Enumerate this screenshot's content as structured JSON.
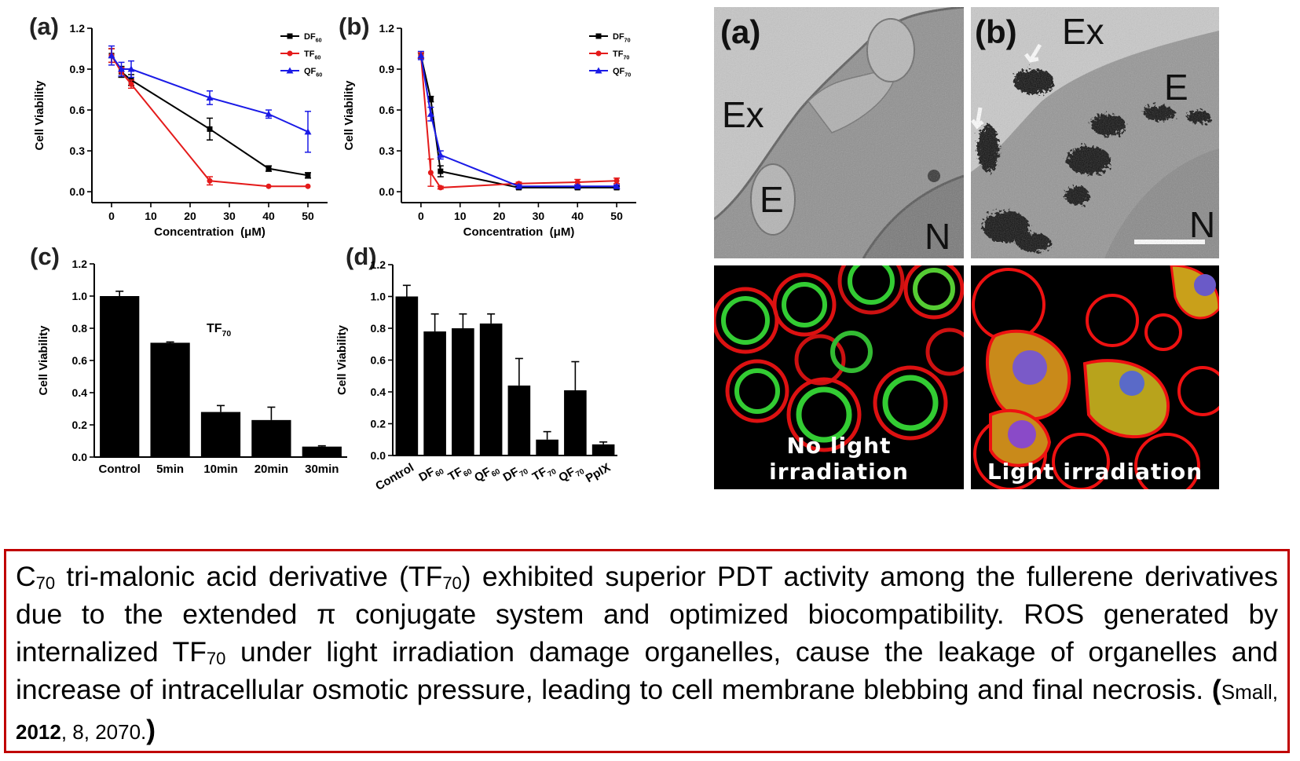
{
  "colors": {
    "black": "#000000",
    "red": "#e41a1a",
    "blue": "#1a1ae6",
    "caption_border": "#c00000"
  },
  "chart_data": [
    {
      "id": "a",
      "panel_label": "(a)",
      "type": "line",
      "xlabel": "Concentration  (μM)",
      "ylabel": "Cell Viability",
      "xlim": [
        -5,
        55
      ],
      "ylim": [
        -0.08,
        1.2
      ],
      "xticks": [
        0,
        10,
        20,
        30,
        40,
        50
      ],
      "yticks": [
        0.0,
        0.3,
        0.6,
        0.9,
        1.2
      ],
      "ytick_labels": [
        "0.0",
        "0.3",
        "0.6",
        "0.9",
        "1.2"
      ],
      "legend_position": "top-right",
      "x": [
        0,
        2.5,
        5,
        25,
        40,
        50
      ],
      "series": [
        {
          "name": "DF",
          "sub": "60",
          "color": "#000000",
          "marker": "square",
          "values": [
            1.0,
            0.88,
            0.82,
            0.46,
            0.17,
            0.12
          ],
          "errors": [
            0.05,
            0.04,
            0.04,
            0.08,
            0.02,
            0.02
          ]
        },
        {
          "name": "TF",
          "sub": "60",
          "color": "#e41a1a",
          "marker": "circle",
          "values": [
            1.0,
            0.88,
            0.79,
            0.08,
            0.04,
            0.04
          ],
          "errors": [
            0.05,
            0.03,
            0.03,
            0.03,
            0.0,
            0.0
          ]
        },
        {
          "name": "QF",
          "sub": "60",
          "color": "#1a1ae6",
          "marker": "triangle",
          "values": [
            1.0,
            0.9,
            0.9,
            0.69,
            0.57,
            0.44
          ],
          "errors": [
            0.07,
            0.05,
            0.06,
            0.05,
            0.03,
            0.15
          ]
        }
      ]
    },
    {
      "id": "b",
      "panel_label": "(b)",
      "type": "line",
      "xlabel": "Concentration  (μM)",
      "ylabel": "Cell Viability",
      "xlim": [
        -5,
        55
      ],
      "ylim": [
        -0.08,
        1.2
      ],
      "xticks": [
        0,
        10,
        20,
        30,
        40,
        50
      ],
      "yticks": [
        0.0,
        0.3,
        0.6,
        0.9,
        1.2
      ],
      "ytick_labels": [
        "0.0",
        "0.3",
        "0.6",
        "0.9",
        "1.2"
      ],
      "legend_position": "top-right",
      "x": [
        0,
        2.5,
        5,
        25,
        40,
        50
      ],
      "series": [
        {
          "name": "DF",
          "sub": "70",
          "color": "#000000",
          "marker": "square",
          "values": [
            1.0,
            0.68,
            0.15,
            0.03,
            0.03,
            0.03
          ],
          "errors": [
            0.02,
            0.02,
            0.04,
            0.01,
            0.01,
            0.01
          ]
        },
        {
          "name": "TF",
          "sub": "70",
          "color": "#e41a1a",
          "marker": "circle",
          "values": [
            1.0,
            0.14,
            0.03,
            0.06,
            0.07,
            0.08
          ],
          "errors": [
            0.02,
            0.1,
            0.01,
            0.01,
            0.02,
            0.02
          ]
        },
        {
          "name": "QF",
          "sub": "70",
          "color": "#1a1ae6",
          "marker": "triangle",
          "values": [
            1.0,
            0.57,
            0.27,
            0.04,
            0.04,
            0.04
          ],
          "errors": [
            0.03,
            0.05,
            0.03,
            0.01,
            0.01,
            0.01
          ]
        }
      ]
    },
    {
      "id": "c",
      "panel_label": "(c)",
      "type": "bar",
      "ylabel": "Cell Viability",
      "ylim": [
        0,
        1.2
      ],
      "yticks": [
        0.0,
        0.2,
        0.4,
        0.6,
        0.8,
        1.0,
        1.2
      ],
      "ytick_labels": [
        "0.0",
        "0.2",
        "0.4",
        "0.6",
        "0.8",
        "1.0",
        "1.2"
      ],
      "annotation": {
        "text": "TF",
        "sub": "70"
      },
      "categories": [
        "Control",
        "5min",
        "10min",
        "20min",
        "30min"
      ],
      "values": [
        1.0,
        0.71,
        0.28,
        0.23,
        0.065
      ],
      "errors": [
        0.03,
        0.005,
        0.04,
        0.08,
        0.005
      ]
    },
    {
      "id": "d",
      "panel_label": "(d)",
      "type": "bar",
      "ylabel": "Cell Viability",
      "ylim": [
        0,
        1.2
      ],
      "yticks": [
        0.0,
        0.2,
        0.4,
        0.6,
        0.8,
        1.0,
        1.2
      ],
      "ytick_labels": [
        "0.0",
        "0.2",
        "0.4",
        "0.6",
        "0.8",
        "1.0",
        "1.2"
      ],
      "categories": [
        {
          "name": "Control",
          "sub": ""
        },
        {
          "name": "DF",
          "sub": "60"
        },
        {
          "name": "TF",
          "sub": "60"
        },
        {
          "name": "QF",
          "sub": "60"
        },
        {
          "name": "DF",
          "sub": "70"
        },
        {
          "name": "TF",
          "sub": "70"
        },
        {
          "name": "QF",
          "sub": "70"
        },
        {
          "name": "PpIX",
          "sub": ""
        }
      ],
      "values": [
        1.0,
        0.78,
        0.8,
        0.83,
        0.44,
        0.1,
        0.41,
        0.07
      ],
      "errors": [
        0.07,
        0.11,
        0.09,
        0.06,
        0.17,
        0.05,
        0.18,
        0.015
      ]
    }
  ],
  "micrographs": {
    "tem_a": {
      "panel_label": "(a)",
      "labels": [
        "Ex",
        "E",
        "N"
      ]
    },
    "tem_b": {
      "panel_label": "(b)",
      "labels": [
        "Ex",
        "E",
        "N"
      ]
    },
    "fluor_left": {
      "caption": "No light irradiation"
    },
    "fluor_right": {
      "caption": "Light irradiation"
    }
  },
  "caption": {
    "p1": "C",
    "s1": "70",
    "p2": " tri-malonic acid derivative (TF",
    "s2": "70",
    "p3": ") exhibited superior PDT activity among the fullerene derivatives due to the extended π conjugate system and optimized biocompatibility. ROS generated by internalized TF",
    "s3": "70",
    "p4": " under light irradiation damage organelles, cause the leakage of organelles and increase of intracellular osmotic pressure, leading to cell membrane blebbing and final necrosis. ",
    "cite_open": "(",
    "cite_journal": "Small, ",
    "cite_year": "2012",
    "cite_rest": ", 8, 2070.",
    "cite_close": ")"
  }
}
